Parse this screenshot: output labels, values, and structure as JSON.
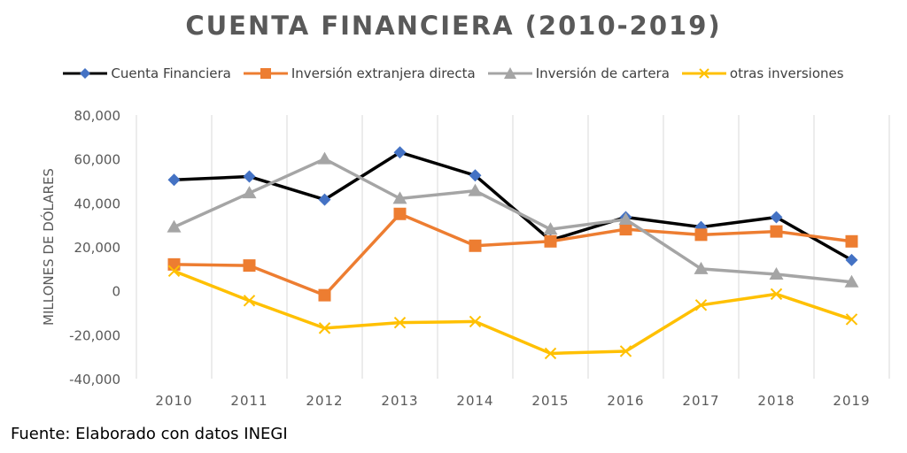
{
  "source_note": "Fuente: Elaborado con datos INEGI",
  "chart_data": {
    "type": "line",
    "title": "CUENTA FINANCIERA (2010-2019)",
    "xlabel": "",
    "ylabel": "MILLONES DE DÓLARES",
    "categories": [
      "2010",
      "2011",
      "2012",
      "2013",
      "2014",
      "2015",
      "2016",
      "2017",
      "2018",
      "2019"
    ],
    "ylim": [
      -40000,
      80000
    ],
    "yticks": [
      -40000,
      -20000,
      0,
      20000,
      40000,
      60000,
      80000
    ],
    "ytick_labels": [
      "-40,000",
      "-20,000",
      "0",
      "20,000",
      "40,000",
      "60,000",
      "80,000"
    ],
    "grid": "vertical",
    "legend_position": "top",
    "series": [
      {
        "name": "Cuenta Financiera",
        "color": "#000000",
        "marker_color": "#4472C4",
        "marker": "diamond",
        "values": [
          50500,
          52000,
          41500,
          63000,
          52500,
          23000,
          33500,
          29000,
          33500,
          14000
        ]
      },
      {
        "name": "Inversión extranjera directa",
        "color": "#ED7D31",
        "marker_color": "#ED7D31",
        "marker": "square",
        "values": [
          12000,
          11500,
          -2000,
          35000,
          20500,
          22500,
          28000,
          25500,
          27000,
          22500
        ]
      },
      {
        "name": "Inversión de cartera",
        "color": "#A5A5A5",
        "marker_color": "#A5A5A5",
        "marker": "triangle",
        "values": [
          29000,
          44500,
          60000,
          42000,
          45500,
          28000,
          32500,
          10000,
          7500,
          4000
        ]
      },
      {
        "name": "otras inversiones",
        "color": "#FFC000",
        "marker_color": "#FFC000",
        "marker": "x",
        "values": [
          9000,
          -4500,
          -17000,
          -14500,
          -14000,
          -28500,
          -27500,
          -6500,
          -1500,
          -13000
        ]
      }
    ]
  }
}
